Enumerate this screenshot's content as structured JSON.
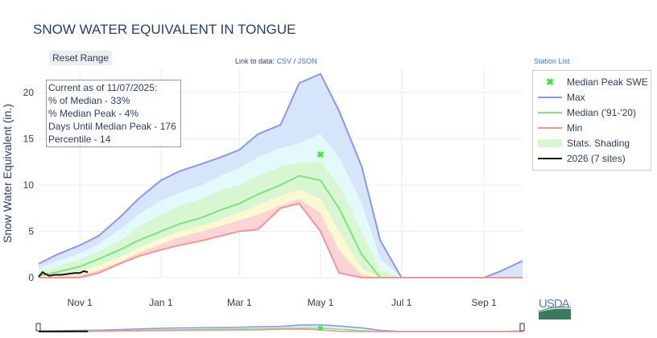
{
  "title": "SNOW WATER EQUIVALENT IN TONGUE",
  "reset_label": "Reset Range",
  "links": {
    "prefix": "Link to data: ",
    "csv": "CSV",
    "sep": " / ",
    "json": "JSON"
  },
  "station_list": "Station List",
  "info": [
    "Current as of 11/07/2025:",
    "% of Median - 33%",
    "% Median Peak - 4%",
    "Days Until Median Peak - 176",
    "Percentile - 14"
  ],
  "logo_text": "USDA",
  "colors": {
    "max": "#8c96f0",
    "median": "#7de37d",
    "min": "#f59494",
    "current": "#111111",
    "peak": "#33ee33",
    "band_low": "#fbd5d5",
    "band_lowmid": "#fbf9cf",
    "band_mid": "#d9f6d2",
    "band_highmid": "#e3fafb",
    "band_high": "#d7e5fb"
  },
  "chart_data": {
    "type": "line",
    "ylabel": "Snow Water Equivalent (in.)",
    "ylim": [
      0,
      22.5
    ],
    "yticks": [
      0,
      5,
      10,
      15,
      20
    ],
    "xlim": [
      "2025-10-01",
      "2026-09-30"
    ],
    "xticks": [
      {
        "date": "2025-11-01",
        "label": "Nov  1"
      },
      {
        "date": "2026-01-01",
        "label": "Jan  1"
      },
      {
        "date": "2026-03-01",
        "label": "Mar  1"
      },
      {
        "date": "2026-05-01",
        "label": "May  1"
      },
      {
        "date": "2026-07-01",
        "label": "Jul  1"
      },
      {
        "date": "2026-09-01",
        "label": "Sep  1"
      }
    ],
    "grid": true,
    "legend_placement": "right",
    "dates": [
      "2025-10-01",
      "2025-10-15",
      "2025-11-01",
      "2025-11-15",
      "2025-12-01",
      "2025-12-15",
      "2026-01-01",
      "2026-01-15",
      "2026-02-01",
      "2026-02-15",
      "2026-03-01",
      "2026-03-15",
      "2026-04-01",
      "2026-04-15",
      "2026-05-01",
      "2026-05-15",
      "2026-06-01",
      "2026-06-15",
      "2026-07-01",
      "2026-08-01",
      "2026-09-01",
      "2026-09-15",
      "2026-09-30"
    ],
    "series": [
      {
        "name": "Max",
        "values": [
          1.5,
          2.5,
          3.5,
          4.5,
          6.5,
          8.5,
          10.5,
          11.5,
          12.3,
          13,
          13.8,
          15.5,
          16.5,
          21,
          22,
          18,
          12,
          4,
          0,
          0,
          0,
          0.8,
          1.8
        ]
      },
      {
        "name": "Median ('91-'20)",
        "values": [
          0.2,
          0.6,
          1.2,
          2,
          3,
          4,
          5,
          5.8,
          6.5,
          7.3,
          8,
          9,
          10,
          11,
          10.5,
          7.5,
          2.5,
          0,
          0,
          0,
          0,
          0,
          0
        ]
      },
      {
        "name": "Min",
        "values": [
          0,
          0,
          0,
          0.5,
          1.5,
          2.3,
          3,
          3.5,
          4,
          4.5,
          5,
          5.2,
          7.5,
          8,
          5,
          0.5,
          0,
          0,
          0,
          0,
          0,
          0,
          0
        ]
      }
    ],
    "shading": {
      "name": "Stats. Shading",
      "p90": [
        1,
        1.8,
        2.6,
        3.6,
        5.2,
        6.8,
        8.3,
        9.2,
        10,
        11,
        11.8,
        13,
        14,
        14.5,
        15.5,
        13,
        8,
        2,
        0,
        0,
        0,
        0,
        0
      ],
      "p70": [
        0.6,
        1.2,
        2,
        2.8,
        4,
        5.5,
        6.8,
        7.8,
        8.5,
        9.5,
        10,
        11,
        12,
        12.5,
        12.5,
        10,
        5,
        0.8,
        0,
        0,
        0,
        0,
        0
      ],
      "p30": [
        0.1,
        0.3,
        0.7,
        1.3,
        2.2,
        3.2,
        4.2,
        5,
        5.6,
        6.3,
        7,
        7.8,
        8.8,
        9.5,
        8.5,
        5,
        1,
        0,
        0,
        0,
        0,
        0,
        0
      ],
      "p10": [
        0,
        0.1,
        0.3,
        0.8,
        1.7,
        2.7,
        3.6,
        4.4,
        5,
        5.6,
        6.2,
        6.8,
        7.8,
        8.5,
        7,
        3,
        0.3,
        0,
        0,
        0,
        0,
        0,
        0
      ]
    },
    "current": {
      "name": "2026 (7 sites)",
      "dates": [
        "2025-10-01",
        "2025-10-04",
        "2025-10-06",
        "2025-10-09",
        "2025-10-13",
        "2025-10-18",
        "2025-10-23",
        "2025-10-28",
        "2025-11-01",
        "2025-11-04",
        "2025-11-07"
      ],
      "values": [
        0.1,
        0.6,
        0.4,
        0.2,
        0.3,
        0.3,
        0.4,
        0.5,
        0.5,
        0.7,
        0.6
      ]
    },
    "median_peak": {
      "name": "Median Peak SWE",
      "date": "2026-05-01",
      "value": 13.3
    }
  }
}
